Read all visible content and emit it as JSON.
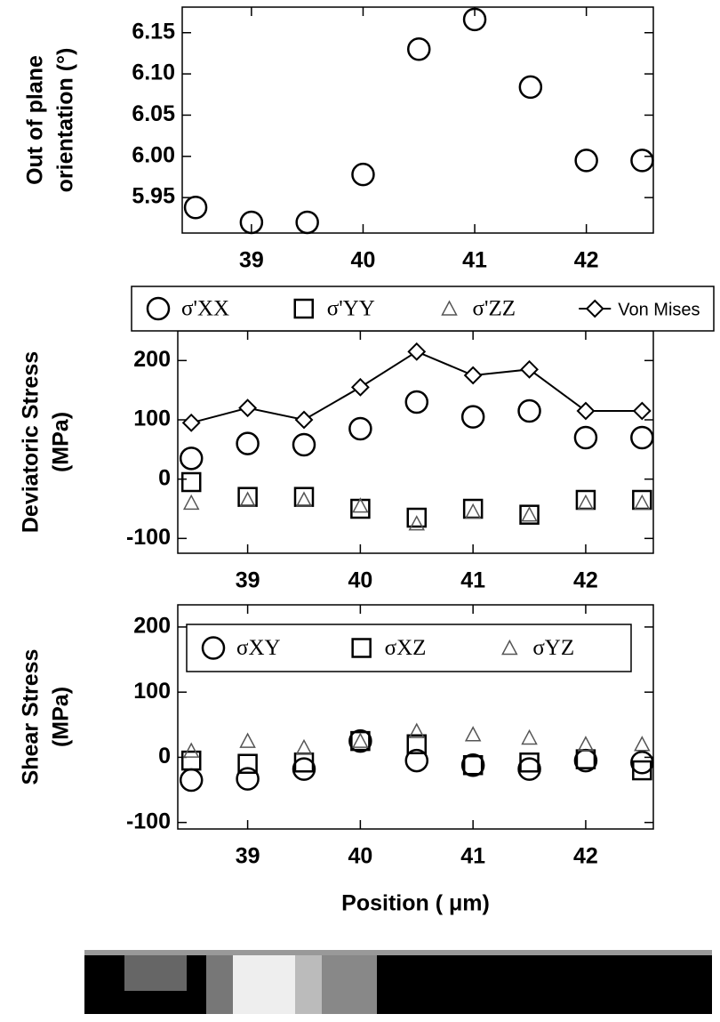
{
  "chart_data": [
    {
      "type": "scatter",
      "ylabel": [
        "Out of plane",
        "orientation (°)"
      ],
      "xlim": [
        38.38,
        42.6
      ],
      "xticks": [
        39,
        40,
        41,
        42
      ],
      "ylim": [
        5.907,
        6.181
      ],
      "yticks": [
        5.95,
        {
          "value": 6,
          "label": "6.00"
        },
        6.05,
        {
          "value": 6.1,
          "label": "6.10"
        },
        6.15
      ],
      "x": [
        38.5,
        39,
        39.5,
        40,
        40.5,
        41,
        41.5,
        42,
        42.5
      ],
      "series": [
        {
          "name": null,
          "color": "#000000",
          "marker": "circle",
          "values": [
            5.938,
            5.92,
            5.92,
            5.978,
            6.13,
            6.166,
            6.084,
            5.995,
            5.995
          ]
        }
      ]
    },
    {
      "type": "scatter",
      "ylabel": [
        "Deviatoric Stress",
        "(MPa)"
      ],
      "xlim": [
        38.38,
        42.6
      ],
      "xticks": [
        39,
        40,
        41,
        42
      ],
      "ylim": [
        -125,
        250
      ],
      "yticks": [
        -100,
        0,
        100,
        200
      ],
      "x": [
        38.5,
        39,
        39.5,
        40,
        40.5,
        41,
        41.5,
        42,
        42.5
      ],
      "series": [
        {
          "name": "σ'XX",
          "color": "#000000",
          "marker": "circle",
          "values": [
            35,
            60,
            58,
            85,
            130,
            105,
            115,
            70,
            70
          ]
        },
        {
          "name": "σ'YY",
          "color": "#000000",
          "marker": "square",
          "values": [
            -5,
            -30,
            -30,
            -50,
            -65,
            -50,
            -60,
            -35,
            -35
          ]
        },
        {
          "name": "σ'ZZ",
          "color": "#555555",
          "marker": "triangle",
          "values": [
            -40,
            -35,
            -35,
            -45,
            -75,
            -55,
            -60,
            -40,
            -40
          ]
        },
        {
          "name": "Von Mises",
          "color": "#000000",
          "marker": "diamond",
          "line": true,
          "values": [
            95,
            120,
            100,
            155,
            215,
            175,
            185,
            115,
            115
          ]
        }
      ]
    },
    {
      "type": "scatter",
      "ylabel": [
        "Shear Stress",
        "(MPa)"
      ],
      "xlabel": "Position (   μm)",
      "xlim": [
        38.38,
        42.6
      ],
      "xticks": [
        39,
        40,
        41,
        42
      ],
      "ylim": [
        -110,
        234
      ],
      "yticks": [
        -100,
        0,
        100,
        200
      ],
      "x": [
        38.5,
        39,
        39.5,
        40,
        40.5,
        41,
        41.5,
        42,
        42.5
      ],
      "series": [
        {
          "name": "σXY",
          "color": "#000000",
          "marker": "circle",
          "values": [
            -35,
            -33,
            -18,
            25,
            -5,
            -12,
            -18,
            -5,
            -8
          ]
        },
        {
          "name": "σXZ",
          "color": "#000000",
          "marker": "square",
          "values": [
            -5,
            -10,
            -8,
            25,
            20,
            -12,
            -8,
            -3,
            -20
          ]
        },
        {
          "name": "σYZ",
          "color": "#555555",
          "marker": "triangle",
          "values": [
            10,
            25,
            15,
            25,
            40,
            35,
            30,
            20,
            20
          ]
        }
      ]
    }
  ]
}
